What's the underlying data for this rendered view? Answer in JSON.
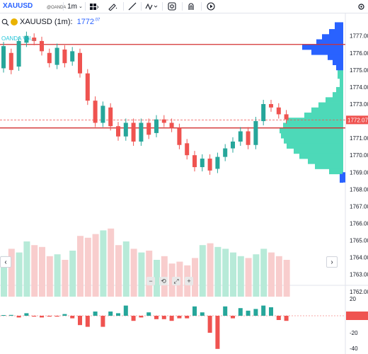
{
  "toolbar": {
    "symbol": "XAUUSD",
    "provider": "@OANDA",
    "interval": "1m",
    "icons": [
      "bar-style-icon",
      "draw-pen-icon",
      "trend-line-icon",
      "indicators-icon",
      "snapshot-icon",
      "alert-icon",
      "replay-icon"
    ]
  },
  "legend": {
    "symbol_label": "XAUUSD (1m):",
    "price_main": "1772",
    "price_sup": ".07",
    "sub_label": "OANDA Vol..."
  },
  "colors": {
    "up": "#26a69a",
    "down": "#ef5350",
    "accent": "#2962ff",
    "level_line": "#d32f2f",
    "vp_up": "#4dd9b8",
    "vp_down": "#2962ff",
    "vol_up": "#b7ead8",
    "vol_down": "#f8cdcd"
  },
  "chart_data": {
    "type": "candlestick",
    "symbol": "XAUUSD",
    "interval": "1m",
    "ylim": [
      1761.7,
      1778.4
    ],
    "price_ticks": [
      "1777.00",
      "1776.00",
      "1775.00",
      "1774.00",
      "1773.00",
      "1772.00",
      "1771.00",
      "1770.00",
      "1769.00",
      "1768.00",
      "1767.00",
      "1766.00",
      "1765.00",
      "1764.00",
      "1763.00",
      "1762.00"
    ],
    "current_price": "1772.07",
    "level_lines": [
      1776.5,
      1771.6
    ],
    "candles": [
      [
        1775.1,
        1776.4
      ],
      [
        1776.0,
        1775.0
      ],
      [
        1775.2,
        1776.7
      ],
      [
        1776.6,
        1777.0
      ],
      [
        1776.9,
        1776.7
      ],
      [
        1776.7,
        1776.1
      ],
      [
        1776.0,
        1775.4
      ],
      [
        1775.3,
        1776.3
      ],
      [
        1776.2,
        1775.4
      ],
      [
        1775.5,
        1776.1
      ],
      [
        1776.0,
        1774.8
      ],
      [
        1774.8,
        1773.2
      ],
      [
        1773.2,
        1771.9
      ],
      [
        1771.9,
        1772.9
      ],
      [
        1772.8,
        1771.7
      ],
      [
        1771.7,
        1771.1
      ],
      [
        1771.1,
        1771.9
      ],
      [
        1771.9,
        1770.8
      ],
      [
        1770.8,
        1771.9
      ],
      [
        1771.9,
        1771.2
      ],
      [
        1771.3,
        1772.1
      ],
      [
        1772.1,
        1771.9
      ],
      [
        1771.9,
        1771.6
      ],
      [
        1771.6,
        1770.6
      ],
      [
        1770.7,
        1770.0
      ],
      [
        1770.0,
        1769.3
      ],
      [
        1769.3,
        1769.8
      ],
      [
        1769.8,
        1769.1
      ],
      [
        1769.2,
        1769.9
      ],
      [
        1769.9,
        1770.4
      ],
      [
        1770.4,
        1770.8
      ],
      [
        1770.8,
        1771.4
      ],
      [
        1771.4,
        1770.6
      ],
      [
        1770.6,
        1772.0
      ],
      [
        1772.0,
        1773.0
      ],
      [
        1773.0,
        1772.8
      ],
      [
        1772.8,
        1772.4
      ],
      [
        1772.4,
        1772.1
      ]
    ],
    "volumes": [
      22,
      26,
      24,
      30,
      28,
      27,
      22,
      23,
      20,
      25,
      33,
      32,
      34,
      36,
      37,
      28,
      30,
      26,
      24,
      25,
      20,
      22,
      18,
      19,
      17,
      21,
      28,
      29,
      27,
      26,
      24,
      22,
      21,
      23,
      26,
      24,
      22,
      20
    ],
    "oscillator_ticks": [
      "20",
      "0",
      "-20",
      "-40"
    ],
    "oscillator": [
      0,
      1,
      -2,
      3,
      -1,
      -2,
      -1,
      -1,
      2,
      -3,
      -11,
      -13,
      5,
      -13,
      5,
      3,
      12,
      -6,
      -2,
      4,
      -4,
      -4,
      -6,
      -3,
      -3,
      11,
      4,
      -20,
      -39,
      11,
      -3,
      9,
      6,
      8,
      12,
      10,
      -5,
      -6
    ]
  },
  "controls": {
    "zoom_out": "−",
    "reset": "⟲",
    "fullscreen": "⤢",
    "zoom_in": "+",
    "scroll_left": "‹",
    "scroll_right": "›"
  }
}
